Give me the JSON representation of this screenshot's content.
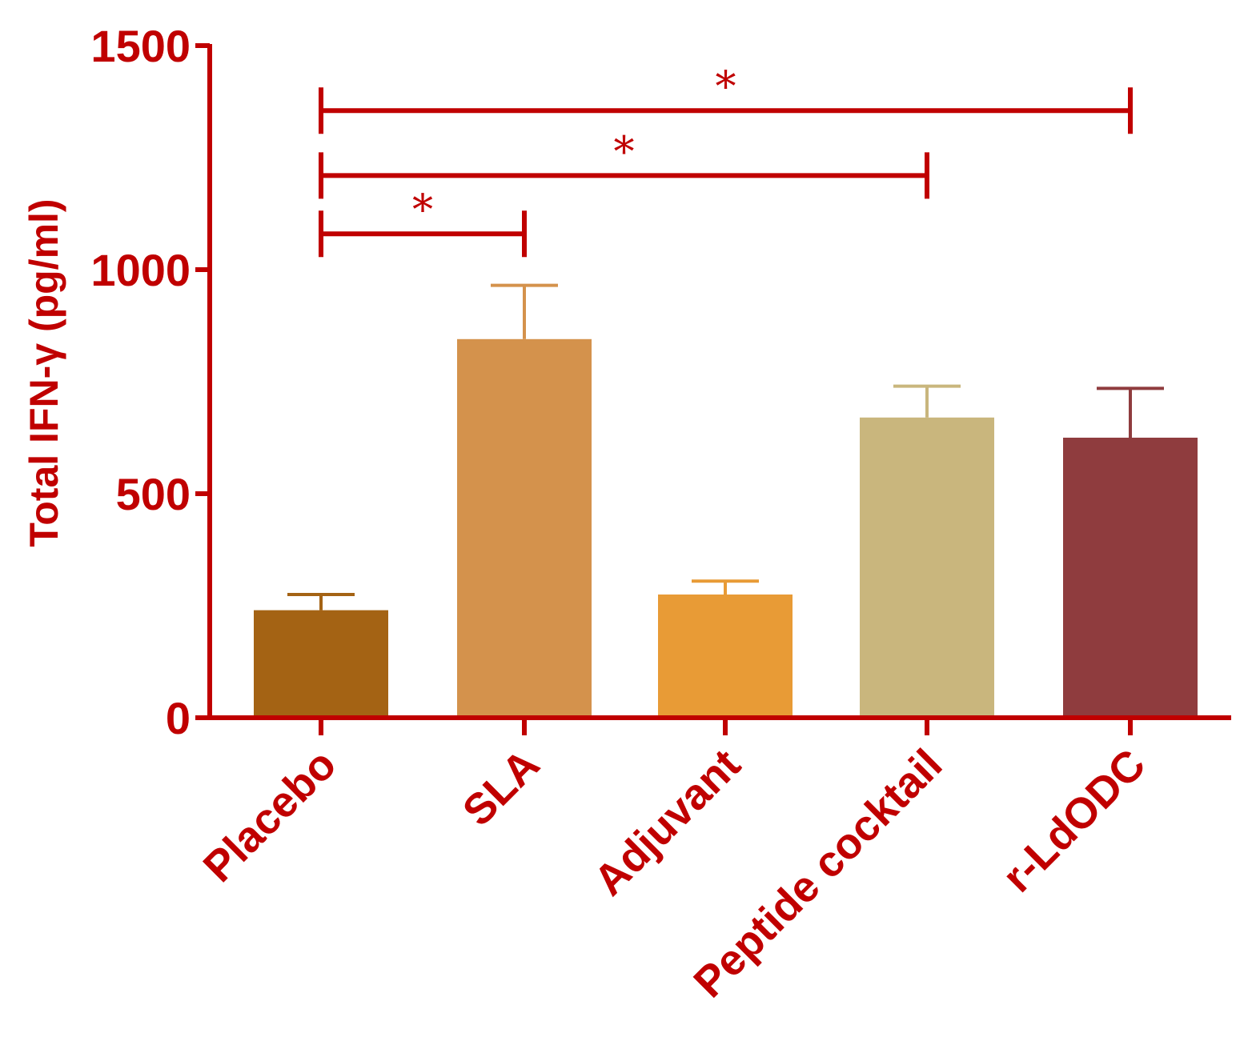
{
  "chart_data": {
    "type": "bar",
    "title": "",
    "xlabel": "",
    "ylabel": "Total IFN-γ (pg/ml)",
    "ylim": [
      0,
      1500
    ],
    "yticks": [
      0,
      500,
      1000,
      1500
    ],
    "categories": [
      "Placebo",
      "SLA",
      "Adjuvant",
      "Peptide cocktail",
      "r-LdODC"
    ],
    "values": [
      240,
      845,
      275,
      670,
      625
    ],
    "errors": [
      35,
      120,
      30,
      70,
      110
    ],
    "bar_colors": [
      "#a46314",
      "#d4924c",
      "#e89b36",
      "#c9b67d",
      "#8f3c3e"
    ],
    "axis_color": "#c00000",
    "grid": false,
    "significance": [
      {
        "from": "Placebo",
        "to": "SLA",
        "label": "*",
        "level": 1080
      },
      {
        "from": "Placebo",
        "to": "Peptide cocktail",
        "label": "*",
        "level": 1210
      },
      {
        "from": "Placebo",
        "to": "r-LdODC",
        "label": "*",
        "level": 1355
      }
    ]
  }
}
